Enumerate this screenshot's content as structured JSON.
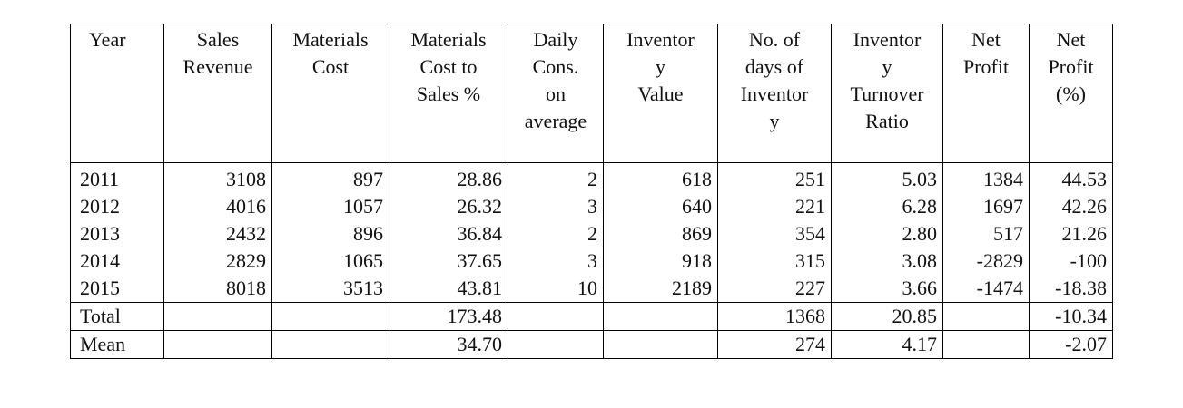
{
  "headers": [
    "Year",
    "Sales\nRevenue",
    "Materials\nCost",
    "Materials\nCost to\nSales %",
    "Daily\nCons.\non\naverage",
    "Inventor\ny\nValue",
    "No. of\ndays of\nInventor\ny",
    "Inventor\ny\nTurnover\nRatio",
    "Net\nProfit",
    "Net\nProfit\n(%)"
  ],
  "rows": [
    [
      "2011",
      "3108",
      "897",
      "28.86",
      "2",
      "618",
      "251",
      "5.03",
      "1384",
      "44.53"
    ],
    [
      "2012",
      "4016",
      "1057",
      "26.32",
      "3",
      "640",
      "221",
      "6.28",
      "1697",
      "42.26"
    ],
    [
      "2013",
      "2432",
      "896",
      "36.84",
      "2",
      "869",
      "354",
      "2.80",
      "517",
      "21.26"
    ],
    [
      "2014",
      "2829",
      "1065",
      "37.65",
      "3",
      "918",
      "315",
      "3.08",
      "-2829",
      "-100"
    ],
    [
      "2015",
      "8018",
      "3513",
      "43.81",
      "10",
      "2189",
      "227",
      "3.66",
      "-1474",
      "-18.38"
    ]
  ],
  "summary": [
    [
      "Total",
      "",
      "",
      "173.48",
      "",
      "",
      "1368",
      "20.85",
      "",
      "-10.34"
    ],
    [
      "Mean",
      "",
      "",
      "34.70",
      "",
      "",
      "274",
      "4.17",
      "",
      "-2.07"
    ]
  ]
}
